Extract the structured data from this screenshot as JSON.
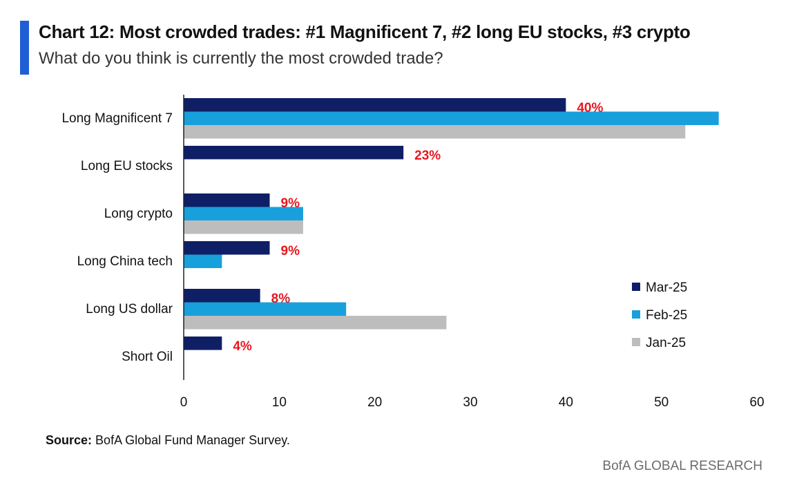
{
  "header": {
    "title": "Chart 12: Most crowded trades: #1 Magnificent 7, #2 long EU stocks, #3 crypto",
    "subtitle": "What do you think is currently the most crowded trade?"
  },
  "footer": {
    "source_label": "Source:",
    "source_text": "BofA Global Fund Manager Survey.",
    "brand": "BofA GLOBAL RESEARCH"
  },
  "colors": {
    "accent": "#1f5fd6",
    "mar25": "#0f1f66",
    "feb25": "#17a0db",
    "jan25": "#bdbdbd",
    "label_red": "#e8171f"
  },
  "chart_data": {
    "type": "bar",
    "orientation": "horizontal",
    "categories": [
      "Long Magnificent 7",
      "Long EU stocks",
      "Long crypto",
      "Long China tech",
      "Long US dollar",
      "Short Oil"
    ],
    "series": [
      {
        "name": "Mar-25",
        "values": [
          40,
          23,
          9,
          9,
          8,
          4
        ]
      },
      {
        "name": "Feb-25",
        "values": [
          56,
          null,
          12.5,
          4,
          17,
          null
        ]
      },
      {
        "name": "Jan-25",
        "values": [
          52.5,
          null,
          12.5,
          null,
          27.5,
          null
        ]
      }
    ],
    "data_labels": [
      "40%",
      "23%",
      "9%",
      "9%",
      "8%",
      "4%"
    ],
    "xlim": [
      0,
      60
    ],
    "xticks": [
      "0",
      "10",
      "20",
      "30",
      "40",
      "50",
      "60"
    ],
    "grid": false,
    "legend_position": "right"
  }
}
